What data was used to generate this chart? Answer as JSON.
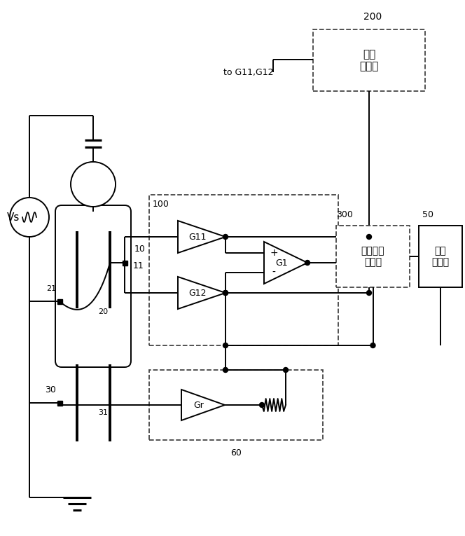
{
  "bg": "#ffffff",
  "labels": {
    "Vs": "Vs",
    "n200": "200",
    "n100": "100",
    "n300": "300",
    "n50": "50",
    "n10": "10",
    "n11": "11",
    "n20": "20",
    "n21": "21",
    "n30": "30",
    "n31": "31",
    "n60": "60",
    "G11": "G11",
    "G12": "G12",
    "G1": "G1",
    "Gr": "Gr",
    "b200": "阻抗\n校正器",
    "b300": "残余噪声\n消除器",
    "b50": "信号\n处理部",
    "tog": "to G11,G12",
    "plus": "+",
    "minus": "-"
  }
}
